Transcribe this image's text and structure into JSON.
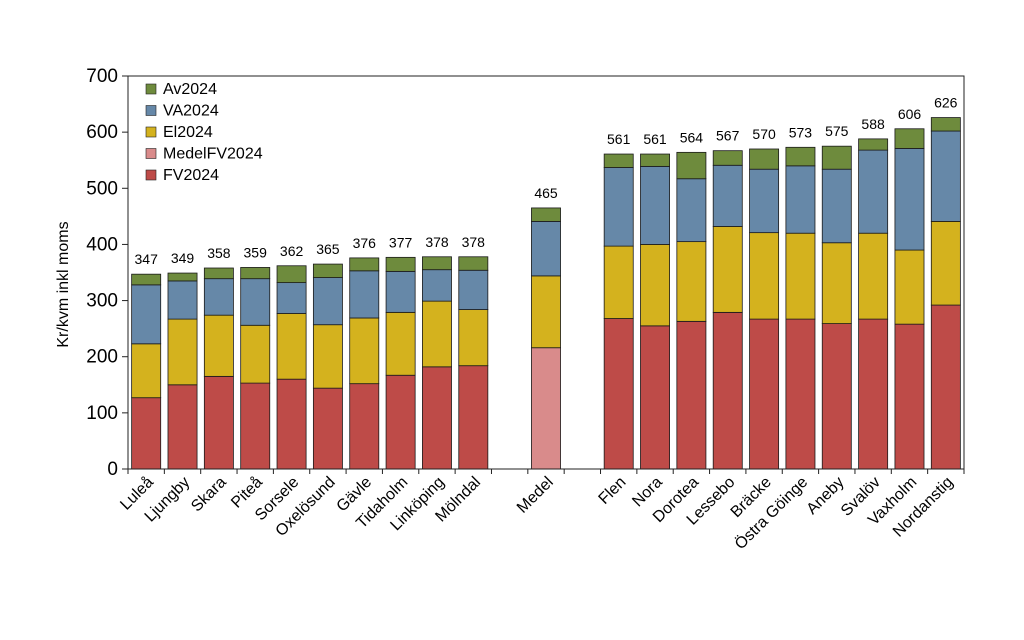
{
  "chart_data": {
    "type": "bar",
    "stacked": true,
    "title": "",
    "xlabel": "",
    "ylabel": "Kr/kvm inkl moms",
    "ylim": [
      0,
      700
    ],
    "yticks": [
      0,
      100,
      200,
      300,
      400,
      500,
      600,
      700
    ],
    "grid": false,
    "legend_position": "top-left",
    "categories": [
      "Luleå",
      "Ljungby",
      "Skara",
      "Piteå",
      "Sorsele",
      "Oxelösund",
      "Gävle",
      "Tidaholm",
      "Linköping",
      "Mölndal",
      "",
      "Medel",
      "",
      "Flen",
      "Nora",
      "Dorotea",
      "Lessebo",
      "Bräcke",
      "Östra Göinge",
      "Aneby",
      "Svalöv",
      "Vaxholm",
      "Nordanstig"
    ],
    "totals": [
      347,
      349,
      358,
      359,
      362,
      365,
      376,
      377,
      378,
      378,
      null,
      465,
      null,
      561,
      561,
      564,
      567,
      570,
      573,
      575,
      588,
      606,
      626
    ],
    "series": [
      {
        "name": "FV2024",
        "color": "#be4b48",
        "values": [
          127,
          150,
          165,
          153,
          160,
          144,
          152,
          167,
          182,
          184,
          null,
          null,
          null,
          268,
          255,
          263,
          279,
          267,
          267,
          259,
          267,
          258,
          292
        ]
      },
      {
        "name": "MedelFV2024",
        "color": "#d98b8b",
        "values": [
          null,
          null,
          null,
          null,
          null,
          null,
          null,
          null,
          null,
          null,
          null,
          216,
          null,
          null,
          null,
          null,
          null,
          null,
          null,
          null,
          null,
          null,
          null
        ]
      },
      {
        "name": "El2024",
        "color": "#d4b21e",
        "values": [
          96,
          117,
          109,
          103,
          117,
          113,
          117,
          112,
          117,
          100,
          null,
          128,
          null,
          129,
          145,
          142,
          153,
          154,
          153,
          144,
          153,
          132,
          149
        ]
      },
      {
        "name": "VA2024",
        "color": "#6688a8",
        "values": [
          105,
          68,
          65,
          83,
          55,
          84,
          84,
          73,
          56,
          70,
          null,
          97,
          null,
          140,
          139,
          112,
          109,
          113,
          120,
          131,
          148,
          181,
          161
        ]
      },
      {
        "name": "Av2024",
        "color": "#6e8b3d",
        "values": [
          19,
          14,
          19,
          20,
          30,
          24,
          23,
          25,
          23,
          24,
          null,
          24,
          null,
          24,
          22,
          47,
          26,
          36,
          33,
          41,
          20,
          35,
          24
        ]
      }
    ],
    "legend_order": [
      "Av2024",
      "VA2024",
      "El2024",
      "MedelFV2024",
      "FV2024"
    ]
  }
}
